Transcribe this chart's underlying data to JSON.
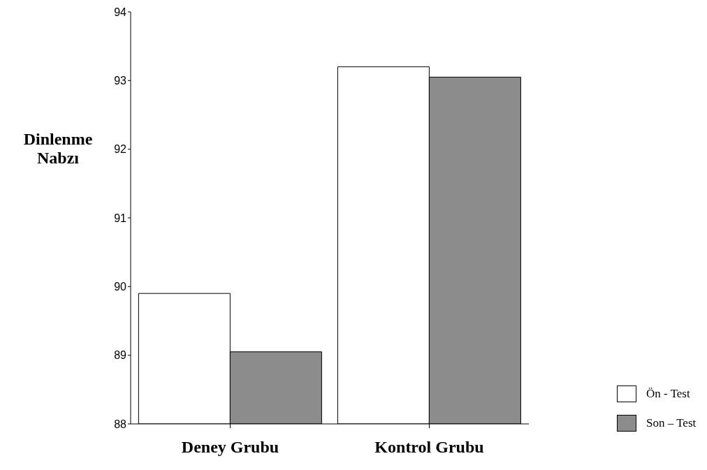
{
  "chart_data": {
    "type": "bar",
    "ylabel": "Dinlenme Nabzı",
    "categories": [
      "Deney Grubu",
      "Kontrol Grubu"
    ],
    "series": [
      {
        "name": "Ön - Test",
        "color": "#ffffff",
        "values": [
          89.9,
          93.2
        ]
      },
      {
        "name": "Son – Test",
        "color": "#8c8c8c",
        "values": [
          89.05,
          93.05
        ]
      }
    ],
    "ylim": [
      88,
      94
    ],
    "yticks": [
      88,
      89,
      90,
      91,
      92,
      93,
      94
    ],
    "grid": false,
    "legend": "bottom right"
  }
}
